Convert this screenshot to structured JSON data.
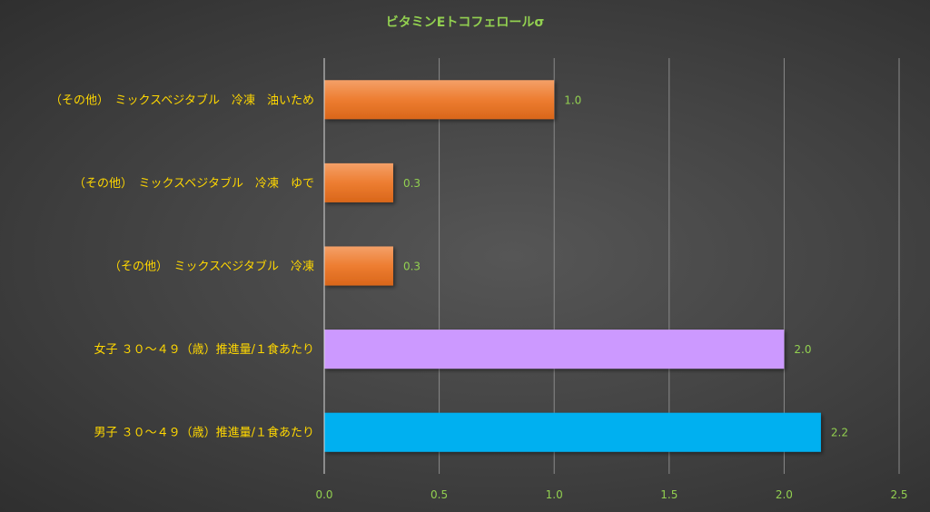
{
  "chart_data": {
    "type": "bar",
    "orientation": "horizontal",
    "title": "ビタミンEトコフェロールσ",
    "xlabel": "",
    "ylabel": "",
    "xlim": [
      0,
      2.5
    ],
    "ticks": [
      "0.0",
      "0.5",
      "1.0",
      "1.5",
      "2.0",
      "2.5"
    ],
    "tick_values": [
      0,
      0.5,
      1.0,
      1.5,
      2.0,
      2.5
    ],
    "grid": true,
    "categories": [
      "（その他）　ミックスベジタブル　冷凍　油いため",
      "（その他）　ミックスベジタブル　冷凍　ゆで",
      "（その他）　ミックスベジタブル　冷凍",
      "女子 ３０～４９（歳）推進量/１食あたり",
      "男子 ３０～４９（歳）推進量/１食あたり"
    ],
    "values": [
      1.0,
      0.3,
      0.3,
      2.0,
      2.16
    ],
    "data_labels": [
      "1.0",
      "0.3",
      "0.3",
      "2.0",
      "2.2"
    ],
    "bar_colors": [
      "#ed7d31",
      "#ed7d31",
      "#ed7d31",
      "#cc99ff",
      "#00b0f0"
    ],
    "colors": {
      "title": "#92d050",
      "category_label": "#ffd700",
      "tick_label": "#92d050",
      "data_label": "#92d050",
      "gridline": "#8a8a8a",
      "axis": "#d9d9d9"
    }
  }
}
